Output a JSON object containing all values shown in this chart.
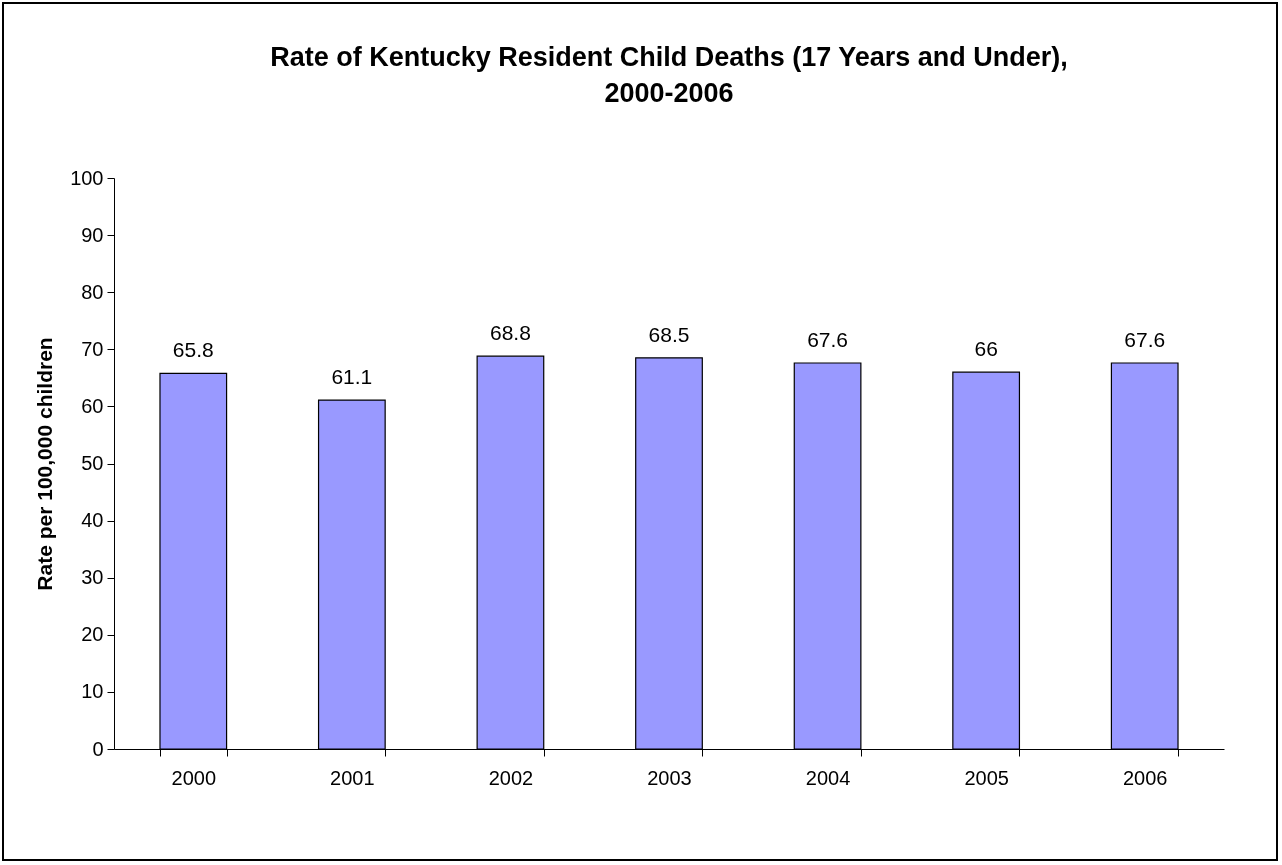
{
  "chart_data": {
    "type": "bar",
    "title": "Rate of Kentucky Resident Child Deaths (17 Years and Under),\n2000-2006",
    "ylabel": "Rate per 100,000 children",
    "categories": [
      "2000",
      "2001",
      "2002",
      "2003",
      "2004",
      "2005",
      "2006"
    ],
    "values": [
      65.8,
      61.1,
      68.8,
      68.5,
      67.6,
      66,
      67.6
    ],
    "color": "#9999ff",
    "ylim": [
      0,
      100
    ],
    "yticks": [
      0,
      10,
      20,
      30,
      40,
      50,
      60,
      70,
      80,
      90,
      100
    ],
    "grid": false,
    "data_labels": true
  }
}
